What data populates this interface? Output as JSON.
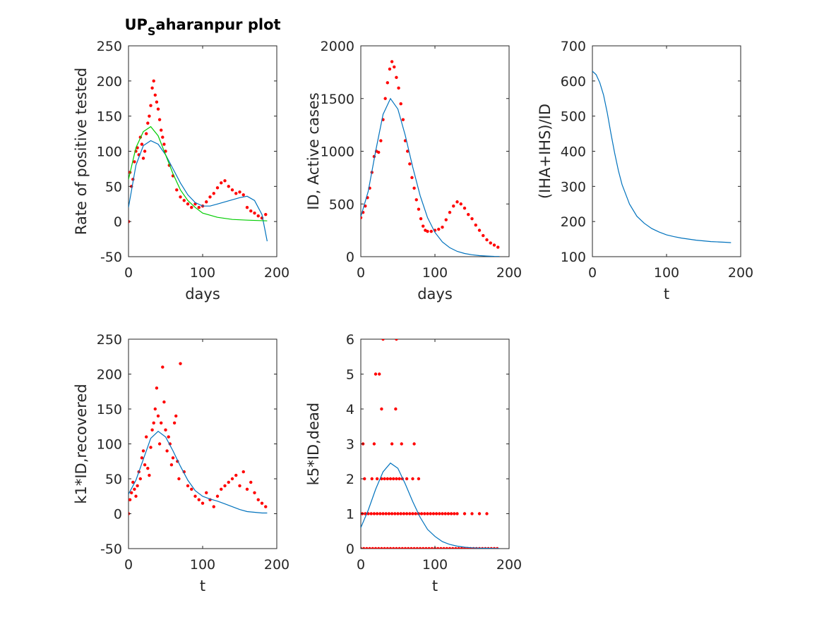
{
  "chart_data": [
    {
      "type": "scatter",
      "title": "UP_Saharanpur plot",
      "xlabel": "days",
      "ylabel": "Rate of positive tested",
      "xlim": [
        0,
        200
      ],
      "ylim": [
        -50,
        250
      ],
      "xticks": [
        "0",
        "100",
        "200"
      ],
      "yticks": [
        "-50",
        "0",
        "50",
        "100",
        "150",
        "200",
        "250"
      ],
      "grid": false,
      "colors": {
        "points": "#ff0000",
        "fit": "#0072bd",
        "fit2": "#00cc00"
      },
      "series": [
        {
          "kind": "points",
          "x": [
            0,
            2,
            4,
            6,
            8,
            10,
            12,
            14,
            16,
            18,
            20,
            22,
            24,
            26,
            28,
            30,
            32,
            34,
            36,
            38,
            40,
            42,
            44,
            46,
            48,
            50,
            55,
            60,
            65,
            70,
            75,
            80,
            85,
            90,
            95,
            100,
            105,
            110,
            115,
            120,
            125,
            130,
            135,
            140,
            145,
            150,
            155,
            160,
            165,
            170,
            175,
            180,
            185
          ],
          "y": [
            0,
            70,
            50,
            60,
            85,
            100,
            105,
            95,
            120,
            110,
            90,
            100,
            125,
            140,
            150,
            165,
            190,
            200,
            180,
            170,
            160,
            145,
            130,
            120,
            110,
            100,
            80,
            65,
            45,
            35,
            30,
            25,
            20,
            25,
            20,
            22,
            28,
            35,
            40,
            48,
            55,
            58,
            50,
            45,
            40,
            42,
            38,
            20,
            15,
            12,
            8,
            5,
            10
          ]
        },
        {
          "kind": "line",
          "x": [
            0,
            10,
            20,
            30,
            40,
            50,
            60,
            70,
            80,
            90,
            100,
            110,
            120,
            130,
            140,
            150,
            160,
            170,
            180,
            187
          ],
          "y": [
            20,
            80,
            108,
            115,
            110,
            95,
            75,
            55,
            38,
            27,
            22,
            22,
            25,
            28,
            31,
            34,
            36,
            30,
            10,
            -28
          ]
        },
        {
          "kind": "line",
          "x": [
            0,
            10,
            20,
            30,
            40,
            50,
            60,
            70,
            80,
            90,
            100,
            120,
            140,
            160,
            187
          ],
          "y": [
            60,
            105,
            128,
            135,
            122,
            95,
            68,
            45,
            30,
            20,
            12,
            6,
            3,
            2,
            1
          ]
        }
      ]
    },
    {
      "type": "scatter",
      "title": "",
      "xlabel": "days",
      "ylabel": "ID, Active cases",
      "xlim": [
        0,
        200
      ],
      "ylim": [
        0,
        2000
      ],
      "xticks": [
        "0",
        "100",
        "200"
      ],
      "yticks": [
        "0",
        "500",
        "1000",
        "1500",
        "2000"
      ],
      "grid": false,
      "series": [
        {
          "kind": "points",
          "x": [
            0,
            3,
            6,
            9,
            12,
            15,
            18,
            21,
            24,
            27,
            30,
            33,
            36,
            39,
            42,
            45,
            48,
            51,
            54,
            57,
            60,
            63,
            66,
            69,
            72,
            75,
            78,
            81,
            84,
            87,
            90,
            95,
            100,
            105,
            110,
            115,
            120,
            125,
            130,
            135,
            140,
            145,
            150,
            155,
            160,
            165,
            170,
            175,
            180,
            185
          ],
          "y": [
            370,
            420,
            480,
            560,
            650,
            800,
            950,
            1000,
            990,
            1100,
            1300,
            1500,
            1650,
            1780,
            1850,
            1800,
            1700,
            1600,
            1450,
            1300,
            1100,
            1000,
            880,
            750,
            650,
            540,
            450,
            360,
            290,
            250,
            240,
            240,
            250,
            260,
            280,
            350,
            420,
            480,
            520,
            500,
            460,
            400,
            360,
            300,
            250,
            200,
            160,
            130,
            110,
            90
          ]
        },
        {
          "kind": "line",
          "x": [
            0,
            10,
            20,
            30,
            40,
            50,
            60,
            70,
            80,
            90,
            100,
            110,
            120,
            130,
            140,
            150,
            160,
            170,
            180,
            187
          ],
          "y": [
            380,
            620,
            1000,
            1350,
            1500,
            1400,
            1150,
            850,
            580,
            370,
            230,
            140,
            85,
            50,
            30,
            18,
            10,
            6,
            3,
            2
          ]
        }
      ]
    },
    {
      "type": "line",
      "title": "",
      "xlabel": "t",
      "ylabel": "(IHA+IHS)/ID",
      "xlim": [
        0,
        200
      ],
      "ylim": [
        100,
        700
      ],
      "xticks": [
        "0",
        "100",
        "200"
      ],
      "yticks": [
        "100",
        "200",
        "300",
        "400",
        "500",
        "600",
        "700"
      ],
      "grid": false,
      "series": [
        {
          "kind": "line",
          "x": [
            0,
            5,
            10,
            15,
            20,
            25,
            30,
            35,
            40,
            50,
            60,
            70,
            80,
            90,
            100,
            110,
            120,
            130,
            140,
            150,
            160,
            170,
            180,
            187
          ],
          "y": [
            628,
            618,
            595,
            560,
            510,
            450,
            395,
            345,
            305,
            250,
            215,
            195,
            180,
            170,
            162,
            157,
            153,
            150,
            147,
            145,
            143,
            142,
            141,
            140
          ]
        }
      ]
    },
    {
      "type": "scatter",
      "title": "",
      "xlabel": "t",
      "ylabel": "k1*ID,recovered",
      "xlim": [
        0,
        200
      ],
      "ylim": [
        -50,
        250
      ],
      "xticks": [
        "0",
        "100",
        "200"
      ],
      "yticks": [
        "-50",
        "0",
        "50",
        "100",
        "150",
        "200",
        "250"
      ],
      "grid": false,
      "series": [
        {
          "kind": "points",
          "x": [
            0,
            2,
            4,
            6,
            8,
            10,
            12,
            14,
            16,
            18,
            20,
            22,
            24,
            26,
            28,
            30,
            32,
            34,
            36,
            38,
            40,
            42,
            44,
            46,
            48,
            50,
            52,
            54,
            56,
            58,
            60,
            62,
            64,
            66,
            68,
            70,
            75,
            80,
            85,
            90,
            95,
            100,
            105,
            110,
            115,
            120,
            125,
            130,
            135,
            140,
            145,
            150,
            155,
            160,
            165,
            170,
            175,
            180,
            185
          ],
          "y": [
            0,
            20,
            30,
            45,
            35,
            25,
            40,
            60,
            50,
            80,
            90,
            70,
            110,
            65,
            55,
            95,
            120,
            130,
            150,
            180,
            140,
            100,
            130,
            210,
            160,
            120,
            90,
            110,
            100,
            70,
            80,
            130,
            140,
            75,
            50,
            215,
            60,
            40,
            35,
            25,
            20,
            15,
            30,
            20,
            10,
            25,
            35,
            40,
            45,
            50,
            55,
            40,
            60,
            35,
            45,
            30,
            20,
            15,
            10
          ]
        },
        {
          "kind": "line",
          "x": [
            0,
            10,
            20,
            30,
            40,
            50,
            60,
            70,
            80,
            90,
            100,
            110,
            120,
            130,
            140,
            150,
            160,
            170,
            180,
            187
          ],
          "y": [
            28,
            48,
            78,
            108,
            118,
            110,
            90,
            68,
            48,
            33,
            25,
            21,
            18,
            14,
            10,
            6,
            3,
            2,
            1,
            1
          ]
        }
      ]
    },
    {
      "type": "scatter",
      "title": "",
      "xlabel": "t",
      "ylabel": "k5*ID,dead",
      "xlim": [
        0,
        200
      ],
      "ylim": [
        0,
        6
      ],
      "xticks": [
        "0",
        "100",
        "200"
      ],
      "yticks": [
        "0",
        "1",
        "2",
        "3",
        "4",
        "5",
        "6"
      ],
      "grid": false,
      "series": [
        {
          "kind": "points",
          "x": [
            0,
            4,
            8,
            12,
            16,
            20,
            24,
            28,
            32,
            36,
            40,
            44,
            48,
            52,
            56,
            60,
            64,
            68,
            72,
            76,
            80,
            84,
            88,
            92,
            96,
            100,
            104,
            108,
            112,
            116,
            120,
            124,
            128,
            132,
            136,
            140,
            144,
            148,
            152,
            156,
            160,
            164,
            168,
            172,
            176,
            180,
            184,
            2,
            6,
            10,
            14,
            18,
            22,
            26,
            30,
            34,
            38,
            42,
            46,
            50,
            54,
            58,
            62,
            66,
            70,
            74,
            78,
            82,
            86,
            90,
            94,
            98,
            102,
            106,
            110,
            114,
            118,
            122,
            126,
            130,
            140,
            150,
            160,
            170,
            5,
            15,
            22,
            28,
            32,
            36,
            40,
            44,
            48,
            52,
            56,
            62,
            70,
            78,
            3,
            18,
            42,
            55,
            72,
            28,
            47,
            20,
            25,
            30,
            48
          ],
          "y": [
            0,
            0,
            0,
            0,
            0,
            0,
            0,
            0,
            0,
            0,
            0,
            0,
            0,
            0,
            0,
            0,
            0,
            0,
            0,
            0,
            0,
            0,
            0,
            0,
            0,
            0,
            0,
            0,
            0,
            0,
            0,
            0,
            0,
            0,
            0,
            0,
            0,
            0,
            0,
            0,
            0,
            0,
            0,
            0,
            0,
            0,
            0,
            1,
            1,
            1,
            1,
            1,
            1,
            1,
            1,
            1,
            1,
            1,
            1,
            1,
            1,
            1,
            1,
            1,
            1,
            1,
            1,
            1,
            1,
            1,
            1,
            1,
            1,
            1,
            1,
            1,
            1,
            1,
            1,
            1,
            1,
            1,
            1,
            1,
            2,
            2,
            2,
            2,
            2,
            2,
            2,
            2,
            2,
            2,
            2,
            2,
            2,
            2,
            3,
            3,
            3,
            3,
            3,
            4,
            4,
            5,
            5,
            6,
            6
          ]
        },
        {
          "kind": "line",
          "x": [
            0,
            10,
            20,
            30,
            40,
            50,
            60,
            70,
            80,
            90,
            100,
            110,
            120,
            130,
            140,
            150,
            160,
            170,
            180,
            187
          ],
          "y": [
            0.6,
            1.1,
            1.7,
            2.2,
            2.45,
            2.3,
            1.85,
            1.35,
            0.9,
            0.55,
            0.35,
            0.2,
            0.12,
            0.07,
            0.04,
            0.025,
            0.015,
            0.01,
            0.005,
            0.003
          ]
        }
      ]
    }
  ]
}
